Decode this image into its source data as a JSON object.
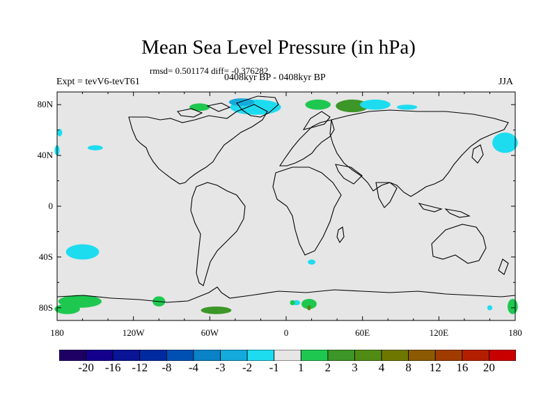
{
  "header": {
    "title": "Mean Sea Level Pressure (in hPa)",
    "stats": "rmsd= 0.501174 diff= -0.376282",
    "experiment": "Expt = tevV6-tevT61",
    "period": "0408kyr BP - 0408kyr BP",
    "season": "JJA"
  },
  "map": {
    "projection": "cylindrical equidistant",
    "ocean_land_color": "#e6e6e6",
    "coastline_color": "#000000",
    "lon_range": [
      -180,
      180
    ],
    "lat_range": [
      -90,
      90
    ],
    "lon_ticks": [
      {
        "value": -180,
        "label": "180"
      },
      {
        "value": -120,
        "label": "120W"
      },
      {
        "value": -60,
        "label": "60W"
      },
      {
        "value": 0,
        "label": "0"
      },
      {
        "value": 60,
        "label": "60E"
      },
      {
        "value": 120,
        "label": "120E"
      },
      {
        "value": 180,
        "label": "180"
      }
    ],
    "lat_ticks": [
      {
        "value": 80,
        "label": "80N"
      },
      {
        "value": 40,
        "label": "40N"
      },
      {
        "value": 0,
        "label": "0"
      },
      {
        "value": -40,
        "label": "40S"
      },
      {
        "value": -80,
        "label": "80S"
      }
    ]
  },
  "colorbar": {
    "colors": [
      "#1e0064",
      "#14008c",
      "#0a1496",
      "#002aa0",
      "#0050b4",
      "#0a82c8",
      "#14aadc",
      "#1edcf0",
      "#e6e6e6",
      "#1ec850",
      "#3c9628",
      "#508c14",
      "#6e7800",
      "#8c5a00",
      "#a03c00",
      "#b41e00",
      "#c80000"
    ],
    "labels": [
      "-20",
      "-16",
      "-12",
      "-8",
      "-4",
      "-3",
      "-2",
      "-1",
      "1",
      "2",
      "3",
      "4",
      "8",
      "12",
      "16",
      "20"
    ]
  },
  "anomalies": [
    {
      "lon": -24,
      "lat": 78,
      "rlon": 20,
      "rlat": 6,
      "level": "-1",
      "color": "#1edcf0"
    },
    {
      "lon": -35,
      "lat": 82,
      "rlon": 10,
      "rlat": 3,
      "level": "-2",
      "color": "#14aadc"
    },
    {
      "lon": -68,
      "lat": 78,
      "rlon": 8,
      "rlat": 3,
      "level": "1",
      "color": "#1ec850"
    },
    {
      "lon": 25,
      "lat": 80,
      "rlon": 10,
      "rlat": 4,
      "level": "1",
      "color": "#1ec850"
    },
    {
      "lon": 52,
      "lat": 79,
      "rlon": 13,
      "rlat": 5,
      "level": "2",
      "color": "#3c9628"
    },
    {
      "lon": 70,
      "lat": 80,
      "rlon": 12,
      "rlat": 4,
      "level": "-1",
      "color": "#1edcf0"
    },
    {
      "lon": 95,
      "lat": 78,
      "rlon": 8,
      "rlat": 2,
      "level": "-1",
      "color": "#1edcf0"
    },
    {
      "lon": 172,
      "lat": 50,
      "rlon": 10,
      "rlat": 8,
      "level": "-1",
      "color": "#1edcf0"
    },
    {
      "lon": -150,
      "lat": 46,
      "rlon": 6,
      "rlat": 2,
      "level": "-1",
      "color": "#1edcf0"
    },
    {
      "lon": -178,
      "lat": 58,
      "rlon": 2,
      "rlat": 3,
      "level": "-1",
      "color": "#1edcf0"
    },
    {
      "lon": -180,
      "lat": 44,
      "rlon": 2,
      "rlat": 4,
      "level": "-1",
      "color": "#1edcf0"
    },
    {
      "lon": -160,
      "lat": -36,
      "rlon": 13,
      "rlat": 6,
      "level": "-1",
      "color": "#1edcf0"
    },
    {
      "lon": 20,
      "lat": -44,
      "rlon": 3,
      "rlat": 2,
      "level": "-1",
      "color": "#1edcf0"
    },
    {
      "lon": -162,
      "lat": -75,
      "rlon": 17,
      "rlat": 5,
      "level": "1",
      "color": "#1ec850"
    },
    {
      "lon": -172,
      "lat": -81,
      "rlon": 10,
      "rlat": 4,
      "level": "1",
      "color": "#1ec850"
    },
    {
      "lon": -100,
      "lat": -75,
      "rlon": 5,
      "rlat": 4,
      "level": "1",
      "color": "#1ec850"
    },
    {
      "lon": -55,
      "lat": -82,
      "rlon": 12,
      "rlat": 3,
      "level": "2",
      "color": "#3c9628"
    },
    {
      "lon": 18,
      "lat": -77,
      "rlon": 6,
      "rlat": 4,
      "level": "1",
      "color": "#1ec850"
    },
    {
      "lon": 8,
      "lat": -76,
      "rlon": 3,
      "rlat": 2,
      "level": "-1",
      "color": "#1edcf0"
    },
    {
      "lon": 5,
      "lat": -76,
      "rlon": 2,
      "rlat": 2,
      "level": "1",
      "color": "#1ec850"
    },
    {
      "lon": 178,
      "lat": -79,
      "rlon": 4,
      "rlat": 6,
      "level": "1",
      "color": "#1ec850"
    },
    {
      "lon": 160,
      "lat": -80,
      "rlon": 2,
      "rlat": 2,
      "level": "-1",
      "color": "#1edcf0"
    },
    {
      "lon": 18,
      "lat": -80,
      "rlon": 1.5,
      "rlat": 2,
      "level": "4",
      "color": "#508c14"
    }
  ]
}
